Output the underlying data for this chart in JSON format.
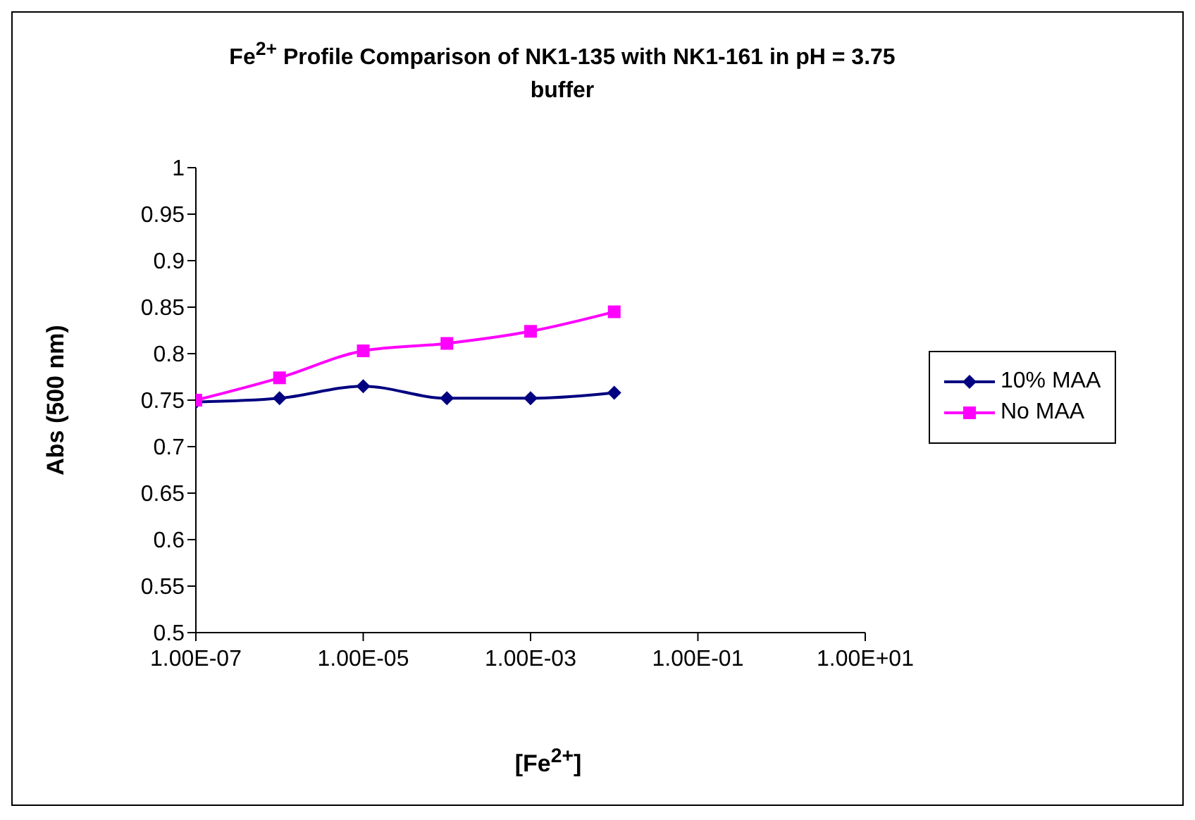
{
  "chart_data": {
    "type": "line",
    "title": "Fe$^{2+}$ Profile Comparison of NK1-135 with NK1-161 in pH = 3.75 buffer",
    "xlabel": "[Fe$^{2+}$]",
    "ylabel": "Abs (500 nm)",
    "log": "x",
    "x": [
      1e-07,
      1e-06,
      1e-05,
      0.0001,
      0.001,
      0.01
    ],
    "series": [
      {
        "name": "10% MAA",
        "color": "#000080",
        "marker": "diamond",
        "values": [
          0.748,
          0.752,
          0.765,
          0.752,
          0.752,
          0.758
        ]
      },
      {
        "name": "No MAA",
        "color": "#ff00ff",
        "marker": "square",
        "values": [
          0.75,
          0.774,
          0.803,
          0.811,
          0.824,
          0.845
        ]
      }
    ],
    "xlim": [
      1e-07,
      10
    ],
    "xticks": [
      {
        "value": 1e-07,
        "label": "1.00E-07"
      },
      {
        "value": 1e-05,
        "label": "1.00E-05"
      },
      {
        "value": 0.001,
        "label": "1.00E-03"
      },
      {
        "value": 0.1,
        "label": "1.00E-01"
      },
      {
        "value": 10,
        "label": "1.00E+01"
      }
    ],
    "ylim": [
      0.5,
      1
    ],
    "yticks": [
      0.5,
      0.55,
      0.6,
      0.65,
      0.7,
      0.75,
      0.8,
      0.85,
      0.9,
      0.95,
      1
    ],
    "grid": false,
    "legend": "right"
  }
}
